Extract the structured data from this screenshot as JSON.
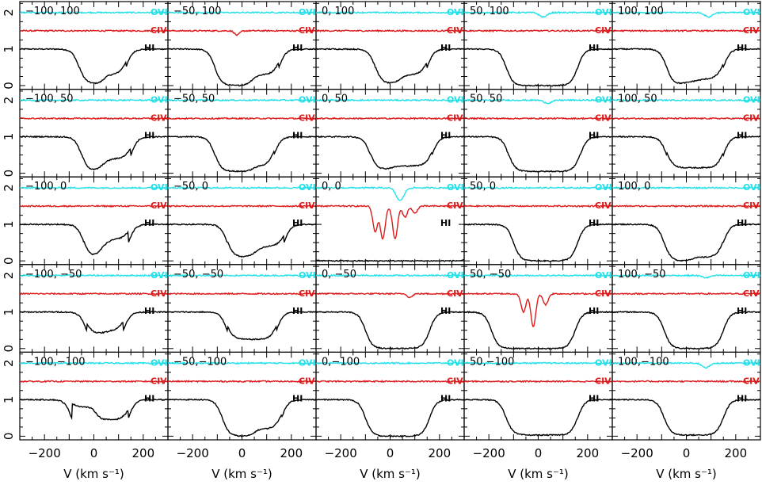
{
  "chart_data": {
    "type": "line",
    "layout": "grid 5x5",
    "xlabel": "V (km s⁻¹)",
    "xlim": [
      -300,
      300
    ],
    "ylim": [
      -0.1,
      2.3
    ],
    "xticks": [
      -200,
      0,
      200
    ],
    "xtick_labels": [
      "−200",
      "0",
      "200"
    ],
    "yticks": [
      0,
      1,
      2
    ],
    "ytick_labels": [
      "0",
      "1",
      "2"
    ],
    "series_styles": {
      "OVI": {
        "color": "#22e0e8",
        "offset": 2.0
      },
      "CIV": {
        "color": "#dd1a1a",
        "offset": 1.5
      },
      "HI": {
        "color": "#000000",
        "offset": 0.0
      }
    },
    "ion_labels": {
      "OVI": "OVI",
      "CIV": "CIV",
      "HI": "HI"
    },
    "panels": [
      {
        "label": "−100, 100",
        "hi": {
          "left": -60,
          "right": 130,
          "bottoms": [
            [
              -10,
              0.05
            ],
            [
              90,
              0.3
            ]
          ]
        },
        "civ": [],
        "ovi": []
      },
      {
        "label": "−50, 100",
        "hi": {
          "left": -110,
          "right": 150,
          "bottoms": [
            [
              0,
              0.0
            ],
            [
              80,
              0.3
            ]
          ]
        },
        "civ": [
          [
            -20,
            0.12
          ]
        ],
        "ovi": []
      },
      {
        "label": "0, 100",
        "hi": {
          "left": -60,
          "right": 150,
          "bottoms": [
            [
              0,
              0.05
            ],
            [
              80,
              0.3
            ]
          ]
        },
        "civ": [],
        "ovi": []
      },
      {
        "label": "50, 100",
        "hi": {
          "left": -130,
          "right": 160,
          "bottoms": [
            [
              0,
              0.0
            ]
          ]
        },
        "civ": [],
        "ovi": [
          [
            20,
            0.12
          ]
        ]
      },
      {
        "label": "100, 100",
        "hi": {
          "left": -80,
          "right": 150,
          "bottoms": [
            [
              0,
              0.0
            ],
            [
              30,
              0.2
            ]
          ]
        },
        "civ": [],
        "ovi": [
          [
            90,
            0.12
          ]
        ]
      },
      {
        "label": "−100,  50",
        "hi": {
          "left": -50,
          "right": 150,
          "bottoms": [
            [
              0,
              0.05
            ],
            [
              70,
              0.4
            ]
          ]
        },
        "civ": [],
        "ovi": []
      },
      {
        "label": "−50,  50",
        "hi": {
          "left": -110,
          "right": 130,
          "bottoms": [
            [
              0,
              0.05
            ],
            [
              90,
              0.2
            ]
          ]
        },
        "civ": [],
        "ovi": []
      },
      {
        "label": "0,  50",
        "hi": {
          "left": -80,
          "right": 170,
          "bottoms": [
            [
              -30,
              0.1
            ],
            [
              40,
              0.2
            ]
          ]
        },
        "civ": [],
        "ovi": []
      },
      {
        "label": "50,  50",
        "hi": {
          "left": -120,
          "right": 170,
          "bottoms": [
            [
              0,
              0.05
            ]
          ]
        },
        "civ": [],
        "ovi": [
          [
            40,
            0.08
          ]
        ]
      },
      {
        "label": "100,  50",
        "hi": {
          "left": -80,
          "right": 150,
          "bottoms": [
            [
              10,
              0.15
            ]
          ]
        },
        "civ": [],
        "ovi": []
      },
      {
        "label": "−100,   0",
        "hi": {
          "left": -40,
          "right": 140,
          "bottoms": [
            [
              0,
              0.05
            ],
            [
              60,
              0.6
            ]
          ]
        },
        "civ": [],
        "ovi": []
      },
      {
        "label": "−50,   0",
        "hi": {
          "left": -60,
          "right": 170,
          "bottoms": [
            [
              20,
              0.1
            ],
            [
              90,
              0.4
            ]
          ]
        },
        "civ": [],
        "ovi": []
      },
      {
        "label": "0,   0",
        "hi": {
          "left": -350,
          "right": 350,
          "bottoms": [
            [
              0,
              0.0
            ]
          ]
        },
        "civ": [
          [
            -60,
            0.7
          ],
          [
            -30,
            0.9
          ],
          [
            20,
            0.9
          ],
          [
            60,
            0.3
          ],
          [
            100,
            0.2
          ]
        ],
        "ovi": [
          [
            40,
            0.35
          ]
        ]
      },
      {
        "label": "50,   0",
        "hi": {
          "left": -100,
          "right": 160,
          "bottoms": [
            [
              -40,
              0.0
            ],
            [
              60,
              0.0
            ]
          ]
        },
        "civ": [],
        "ovi": []
      },
      {
        "label": "100,   0",
        "hi": {
          "left": -90,
          "right": 150,
          "bottoms": [
            [
              -20,
              0.0
            ],
            [
              60,
              0.1
            ]
          ]
        },
        "civ": [],
        "ovi": []
      },
      {
        "label": "−100, −50",
        "hi": {
          "left": -30,
          "right": 120,
          "bottoms": [
            [
              20,
              0.4
            ],
            [
              80,
              0.5
            ]
          ]
        },
        "civ": [],
        "ovi": []
      },
      {
        "label": "−50, −50",
        "hi": {
          "left": -60,
          "right": 140,
          "bottoms": [
            [
              80,
              0.25
            ]
          ]
        },
        "civ": [],
        "ovi": []
      },
      {
        "label": "0, −50",
        "hi": {
          "left": -100,
          "right": 160,
          "bottoms": [
            [
              0,
              0.0
            ]
          ]
        },
        "civ": [
          [
            80,
            0.1
          ]
        ],
        "ovi": []
      },
      {
        "label": "50, −50",
        "hi": {
          "left": -190,
          "right": 150,
          "bottoms": [
            [
              0,
              0.0
            ]
          ]
        },
        "civ": [
          [
            -60,
            0.5
          ],
          [
            -20,
            0.9
          ],
          [
            30,
            0.3
          ]
        ],
        "ovi": []
      },
      {
        "label": "100, −50",
        "hi": {
          "left": -90,
          "right": 150,
          "bottoms": [
            [
              -20,
              0.0
            ],
            [
              60,
              0.0
            ]
          ]
        },
        "civ": [],
        "ovi": [
          [
            80,
            0.06
          ]
        ]
      },
      {
        "label": "−100,−100",
        "hi": {
          "left": -90,
          "right": 140,
          "bottoms": [
            [
              -40,
              0.8
            ],
            [
              60,
              0.45
            ]
          ]
        },
        "civ": [],
        "ovi": []
      },
      {
        "label": "−50,−100",
        "hi": {
          "left": -80,
          "right": 160,
          "bottoms": [
            [
              0,
              0.0
            ],
            [
              100,
              0.2
            ]
          ]
        },
        "civ": [],
        "ovi": []
      },
      {
        "label": "0,−100",
        "hi": {
          "left": -100,
          "right": 160,
          "bottoms": [
            [
              0,
              0.0
            ]
          ]
        },
        "civ": [],
        "ovi": []
      },
      {
        "label": "50,−100",
        "hi": {
          "left": -130,
          "right": 160,
          "bottoms": [
            [
              0,
              0.03
            ]
          ]
        },
        "civ": [],
        "ovi": []
      },
      {
        "label": "100,−100",
        "hi": {
          "left": -90,
          "right": 150,
          "bottoms": [
            [
              0,
              0.03
            ]
          ]
        },
        "civ": [],
        "ovi": [
          [
            80,
            0.12
          ]
        ]
      }
    ]
  }
}
